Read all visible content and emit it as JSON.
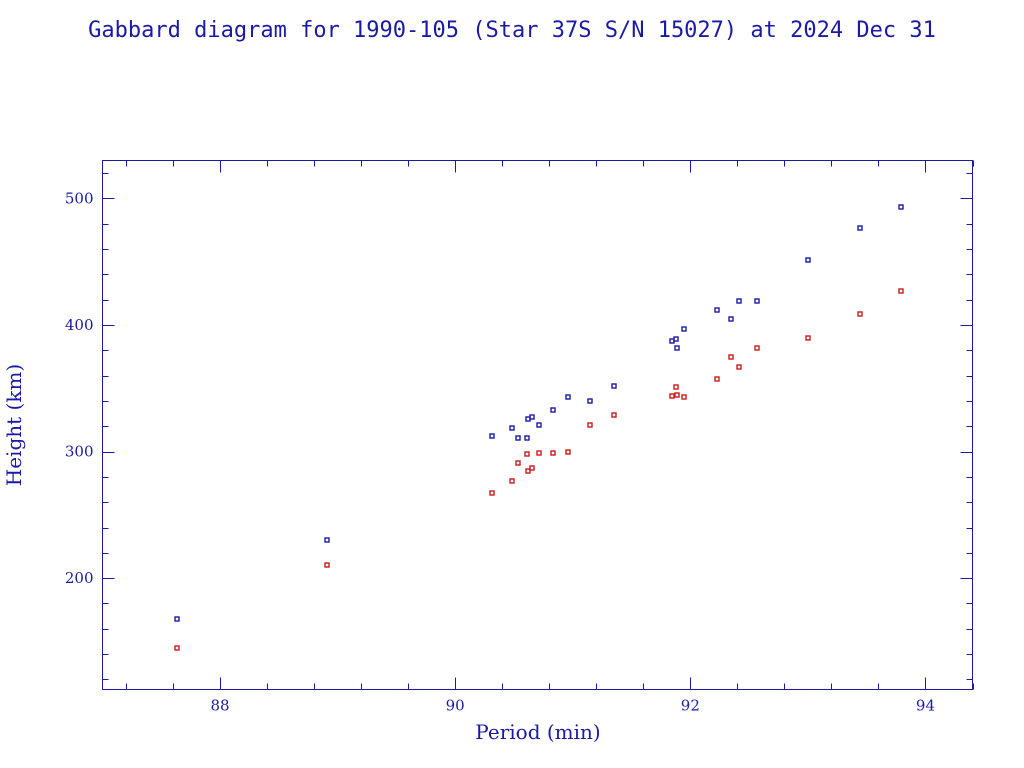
{
  "title": "Gabbard diagram for 1990-105 (Star 37S S/N 15027) at 2024 Dec 31",
  "chart_data": {
    "type": "scatter",
    "title": "Gabbard diagram for 1990-105 (Star 37S S/N 15027) at 2024 Dec 31",
    "xlabel": "Period (min)",
    "ylabel": "Height (km)",
    "xlim": [
      87.0,
      94.4
    ],
    "ylim": [
      112,
      530
    ],
    "xticks": [
      88,
      90,
      92,
      94
    ],
    "yticks": [
      200,
      300,
      400,
      500
    ],
    "grid": false,
    "colors": {
      "axis": "#1a1aa6",
      "apogee": "#1a1aa6",
      "perigee": "#cc1a1a"
    },
    "series": [
      {
        "color": "#1a1aa6",
        "points": [
          [
            87.63,
            168
          ],
          [
            88.91,
            230
          ],
          [
            90.31,
            312
          ],
          [
            90.48,
            319
          ],
          [
            90.53,
            311
          ],
          [
            90.61,
            311
          ],
          [
            90.62,
            326
          ],
          [
            90.65,
            327
          ],
          [
            90.71,
            321
          ],
          [
            90.83,
            333
          ],
          [
            90.96,
            343
          ],
          [
            91.15,
            340
          ],
          [
            91.35,
            352
          ],
          [
            91.84,
            387
          ],
          [
            91.88,
            389
          ],
          [
            91.89,
            382
          ],
          [
            91.95,
            397
          ],
          [
            92.23,
            412
          ],
          [
            92.35,
            405
          ],
          [
            92.41,
            419
          ],
          [
            92.57,
            419
          ],
          [
            93.0,
            451
          ],
          [
            93.44,
            477
          ],
          [
            93.79,
            493
          ]
        ]
      },
      {
        "color": "#cc1a1a",
        "points": [
          [
            87.63,
            145
          ],
          [
            88.91,
            210
          ],
          [
            90.31,
            267
          ],
          [
            90.48,
            277
          ],
          [
            90.53,
            291
          ],
          [
            90.61,
            298
          ],
          [
            90.62,
            285
          ],
          [
            90.65,
            287
          ],
          [
            90.71,
            299
          ],
          [
            90.83,
            299
          ],
          [
            90.96,
            300
          ],
          [
            91.15,
            321
          ],
          [
            91.35,
            329
          ],
          [
            91.84,
            344
          ],
          [
            91.88,
            351
          ],
          [
            91.89,
            345
          ],
          [
            91.95,
            343
          ],
          [
            92.23,
            357
          ],
          [
            92.35,
            375
          ],
          [
            92.41,
            367
          ],
          [
            92.57,
            382
          ],
          [
            93.0,
            390
          ],
          [
            93.44,
            409
          ],
          [
            93.79,
            427
          ]
        ]
      }
    ]
  }
}
